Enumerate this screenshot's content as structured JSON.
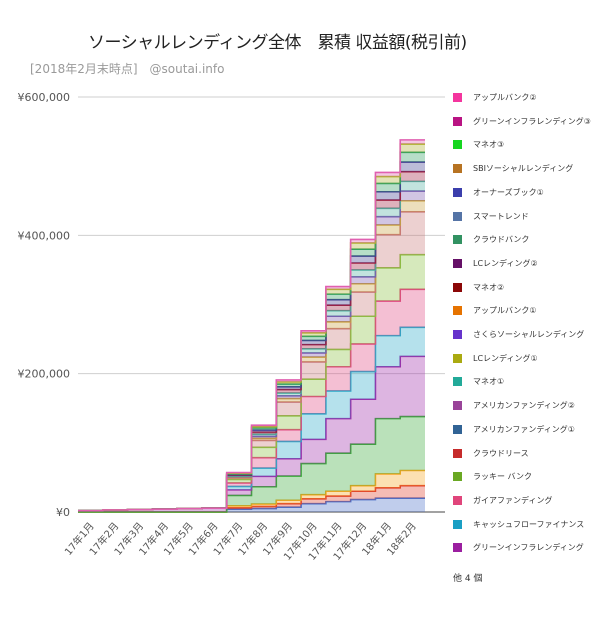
{
  "title": "ソーシャルレンディング全体　累積 収益額(税引前)",
  "subtitle": "[2018年2月末時点]　@soutai.info",
  "chart_data": {
    "type": "area",
    "stacked": true,
    "step": true,
    "title": "ソーシャルレンディング全体　累積 収益額(税引前)",
    "xlabel": "",
    "ylabel": "",
    "ylim": [
      0,
      600000
    ],
    "yticks": [
      0,
      200000,
      400000,
      600000
    ],
    "ytick_labels": [
      "¥0",
      "¥200,000",
      "¥400,000",
      "¥600,000"
    ],
    "grid": true,
    "legend_position": "right",
    "categories": [
      "17年1月",
      "17年2月",
      "17年3月",
      "17年4月",
      "17年5月",
      "17年6月",
      "17年7月",
      "17年8月",
      "17年9月",
      "17年10月",
      "17年11月",
      "17年12月",
      "18年1月",
      "18年2月"
    ],
    "series": [
      {
        "name": "グリーンインフラレンディング",
        "color": "#9b1fa0",
        "values": [
          0,
          0,
          0,
          0,
          0,
          0,
          0,
          0,
          0,
          0,
          0,
          0,
          0,
          0
        ]
      },
      {
        "name": "キャッシュフローファイナンス",
        "color": "#1a9fc4",
        "values": [
          0,
          0,
          0,
          0,
          0,
          0,
          0,
          0,
          0,
          0,
          0,
          0,
          0,
          0
        ]
      },
      {
        "name": "ガイアファンディング",
        "color": "#e0457b",
        "values": [
          0,
          0,
          0,
          0,
          0,
          0,
          0,
          0,
          0,
          0,
          0,
          0,
          0,
          0
        ]
      },
      {
        "name": "ラッキー バンク",
        "color": "#6aa823",
        "values": [
          0,
          0,
          0,
          0,
          0,
          0,
          0,
          0,
          0,
          0,
          0,
          0,
          0,
          0
        ]
      },
      {
        "name": "クラウドリース",
        "color": "#c62b2b",
        "values": [
          0,
          0,
          0,
          0,
          0,
          0,
          0,
          0,
          0,
          0,
          0,
          0,
          0,
          0
        ]
      },
      {
        "name": "アメリカンファンディング①",
        "color": "#2f5f96",
        "values": [
          0,
          0,
          0,
          0,
          0,
          0,
          0,
          0,
          0,
          0,
          0,
          0,
          0,
          0
        ]
      },
      {
        "name": "アメリカンファンディング②",
        "color": "#994499",
        "values": [
          0,
          0,
          0,
          0,
          0,
          0,
          0,
          0,
          0,
          0,
          0,
          0,
          0,
          0
        ]
      },
      {
        "name": "マネオ①",
        "color": "#22aa99",
        "values": [
          0,
          0,
          0,
          0,
          0,
          0,
          0,
          0,
          0,
          0,
          0,
          0,
          0,
          0
        ]
      },
      {
        "name": "LCレンディング①",
        "color": "#aaaa11",
        "values": [
          0,
          0,
          0,
          0,
          0,
          0,
          0,
          0,
          0,
          0,
          0,
          0,
          0,
          0
        ]
      },
      {
        "name": "さくらソーシャルレンディング",
        "color": "#6633cc",
        "values": [
          0,
          0,
          0,
          0,
          0,
          0,
          0,
          0,
          0,
          0,
          0,
          0,
          0,
          0
        ]
      },
      {
        "name": "アップルバンク①",
        "color": "#e67300",
        "values": [
          0,
          0,
          0,
          0,
          0,
          0,
          0,
          0,
          0,
          0,
          0,
          0,
          0,
          0
        ]
      },
      {
        "name": "マネオ②",
        "color": "#8b0707",
        "values": [
          0,
          0,
          0,
          0,
          0,
          0,
          0,
          0,
          0,
          0,
          0,
          0,
          0,
          0
        ]
      },
      {
        "name": "LCレンディング②",
        "color": "#651067",
        "values": [
          0,
          0,
          0,
          0,
          0,
          0,
          0,
          0,
          0,
          0,
          0,
          0,
          0,
          0
        ]
      },
      {
        "name": "クラウドバンク",
        "color": "#329262",
        "values": [
          0,
          0,
          0,
          0,
          0,
          0,
          0,
          0,
          0,
          0,
          0,
          0,
          0,
          0
        ]
      },
      {
        "name": "スマートレンド",
        "color": "#5574a6",
        "values": [
          0,
          0,
          0,
          0,
          0,
          0,
          0,
          0,
          0,
          0,
          0,
          0,
          0,
          0
        ]
      },
      {
        "name": "オーナーズブック①",
        "color": "#3b3eac",
        "values": [
          0,
          0,
          0,
          0,
          0,
          0,
          0,
          0,
          0,
          0,
          0,
          0,
          0,
          0
        ]
      },
      {
        "name": "SBIソーシャルレンディング",
        "color": "#b77322",
        "values": [
          0,
          0,
          0,
          0,
          0,
          0,
          0,
          0,
          0,
          0,
          0,
          0,
          0,
          0
        ]
      },
      {
        "name": "マネオ③",
        "color": "#16d620",
        "values": [
          0,
          0,
          0,
          0,
          0,
          0,
          0,
          0,
          0,
          0,
          0,
          0,
          0,
          0
        ]
      },
      {
        "name": "グリーンインフラレンディング③",
        "color": "#b91383",
        "values": [
          0,
          0,
          0,
          0,
          0,
          0,
          0,
          0,
          0,
          0,
          0,
          0,
          0,
          0
        ]
      },
      {
        "name": "アップルバンク②",
        "color": "#f4359e",
        "values": [
          0,
          0,
          0,
          0,
          0,
          0,
          0,
          0,
          0,
          0,
          0,
          0,
          0,
          0
        ]
      }
    ],
    "stack_bottom_to_top": [
      {
        "color": "#4a6fc8",
        "values": [
          0,
          0,
          0,
          0,
          0,
          0,
          4000,
          5000,
          7000,
          12000,
          15000,
          18000,
          20000,
          20000
        ]
      },
      {
        "color": "#e0402a",
        "values": [
          0,
          0,
          0,
          0,
          0,
          0,
          2000,
          3000,
          5000,
          7000,
          8000,
          12000,
          15000,
          18000
        ]
      },
      {
        "color": "#f5a623",
        "values": [
          0,
          0,
          0,
          0,
          0,
          0,
          3000,
          3500,
          5000,
          6000,
          7000,
          8000,
          20000,
          22000
        ]
      },
      {
        "color": "#3aaa3a",
        "values": [
          0,
          0,
          0,
          0,
          0,
          0,
          15000,
          25000,
          35000,
          45000,
          55000,
          60000,
          80000,
          78000
        ]
      },
      {
        "color": "#9e2aa8",
        "values": [
          2000,
          3000,
          3500,
          4000,
          5000,
          5500,
          8000,
          15000,
          25000,
          35000,
          50000,
          65000,
          75000,
          87000
        ]
      },
      {
        "color": "#2aa8c8",
        "values": [
          0,
          0,
          0,
          0,
          0,
          0,
          5000,
          12000,
          25000,
          37000,
          40000,
          40000,
          45000,
          42000
        ]
      },
      {
        "color": "#e04880",
        "values": [
          0,
          0,
          0,
          0,
          0,
          0,
          5000,
          15000,
          17000,
          25000,
          35000,
          40000,
          50000,
          55000
        ]
      },
      {
        "color": "#8ac040",
        "values": [
          0,
          0,
          0,
          0,
          0,
          0,
          5000,
          15000,
          20000,
          25000,
          25000,
          40000,
          48000,
          50000
        ]
      },
      {
        "color": "#c87878",
        "values": [
          0,
          0,
          0,
          0,
          0,
          0,
          2000,
          10000,
          20000,
          25000,
          30000,
          35000,
          48000,
          62000
        ]
      },
      {
        "color": "#c8a040",
        "values": [
          0,
          0,
          0,
          0,
          0,
          0,
          1000,
          3000,
          5000,
          7000,
          10000,
          12000,
          14000,
          16000
        ]
      },
      {
        "color": "#7a5ab0",
        "values": [
          0,
          0,
          0,
          0,
          0,
          0,
          1000,
          3000,
          4000,
          6000,
          8000,
          10000,
          12000,
          14000
        ]
      },
      {
        "color": "#50b0a0",
        "values": [
          0,
          0,
          0,
          0,
          0,
          0,
          1000,
          3000,
          4000,
          6000,
          8000,
          10000,
          12000,
          14000
        ]
      },
      {
        "color": "#a02040",
        "values": [
          0,
          0,
          0,
          0,
          0,
          0,
          1000,
          3000,
          5000,
          6000,
          8000,
          10000,
          12000,
          14000
        ]
      },
      {
        "color": "#404090",
        "values": [
          0,
          0,
          0,
          0,
          0,
          0,
          1000,
          3000,
          4000,
          6000,
          8000,
          10000,
          12000,
          14000
        ]
      },
      {
        "color": "#30a060",
        "values": [
          0,
          0,
          0,
          0,
          0,
          0,
          1000,
          3000,
          4000,
          6000,
          8000,
          10000,
          12000,
          14000
        ]
      },
      {
        "color": "#b0b030",
        "values": [
          0,
          0,
          0,
          0,
          0,
          0,
          1000,
          2000,
          3000,
          5000,
          7000,
          9000,
          10000,
          12000
        ]
      },
      {
        "color": "#e060b0",
        "values": [
          0,
          0,
          0,
          0,
          0,
          0,
          1000,
          2000,
          3000,
          3000,
          4000,
          5000,
          6000,
          6000
        ]
      }
    ]
  },
  "legend": {
    "items": [
      {
        "label": "アップルバンク②",
        "color": "#f4359e"
      },
      {
        "label": "グリーンインフラレンディング③",
        "color": "#b91383"
      },
      {
        "label": "マネオ③",
        "color": "#16d620"
      },
      {
        "label": "SBIソーシャルレンディング",
        "color": "#b77322"
      },
      {
        "label": "オーナーズブック①",
        "color": "#3b3eac"
      },
      {
        "label": "スマートレンド",
        "color": "#5574a6"
      },
      {
        "label": "クラウドバンク",
        "color": "#329262"
      },
      {
        "label": "LCレンディング②",
        "color": "#651067"
      },
      {
        "label": "マネオ②",
        "color": "#8b0707"
      },
      {
        "label": "アップルバンク①",
        "color": "#e67300"
      },
      {
        "label": "さくらソーシャルレンディング",
        "color": "#6633cc"
      },
      {
        "label": "LCレンディング①",
        "color": "#aaaa11"
      },
      {
        "label": "マネオ①",
        "color": "#22aa99"
      },
      {
        "label": "アメリカンファンディング②",
        "color": "#994499"
      },
      {
        "label": "アメリカンファンディング①",
        "color": "#316395"
      },
      {
        "label": "クラウドリース",
        "color": "#c62b2b"
      },
      {
        "label": "ラッキー バンク",
        "color": "#6aa823"
      },
      {
        "label": "ガイアファンディング",
        "color": "#e0457b"
      },
      {
        "label": "キャッシュフローファイナンス",
        "color": "#1a9fc4"
      },
      {
        "label": "グリーンインフラレンディング",
        "color": "#9b1fa0"
      }
    ],
    "more_label": "他 4 個"
  }
}
